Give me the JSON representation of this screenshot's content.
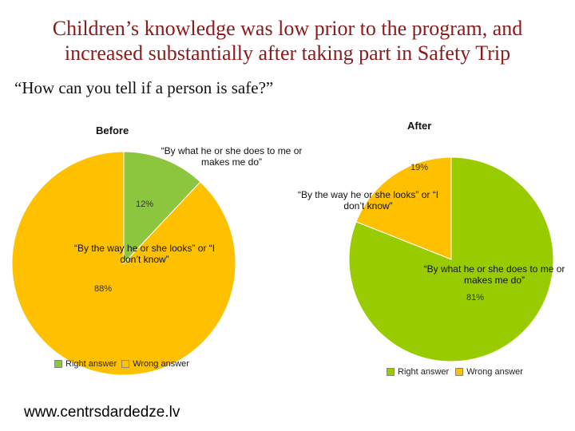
{
  "slide": {
    "title_line1": "Children’s knowledge was low prior to the program, and",
    "title_line2": "increased substantially after taking part in Safety Trip",
    "question": "“How can you tell if a person is safe?”",
    "website": "www.centrsdardedze.lv"
  },
  "chart_data": [
    {
      "type": "pie",
      "title": "Before",
      "categories": [
        "Right answer",
        "Wrong answer"
      ],
      "values": [
        12,
        88
      ],
      "value_labels": [
        "12%",
        "88%"
      ],
      "annotations": [
        "“By what he or she does to me or makes me do”",
        "“By the way he or she looks” or “I don’t know”"
      ],
      "colors": [
        "#8cc63f",
        "#ffc000"
      ],
      "legend": "bottom"
    },
    {
      "type": "pie",
      "title": "After",
      "categories": [
        "Right answer",
        "Wrong answer"
      ],
      "values": [
        81,
        19
      ],
      "value_labels": [
        "81%",
        "19%"
      ],
      "annotations": [
        "“By what he or she does to me or makes me do”",
        "“By the way he or she looks” or “I don’t know”"
      ],
      "colors": [
        "#99cc00",
        "#ffc000"
      ],
      "legend": "bottom"
    }
  ]
}
